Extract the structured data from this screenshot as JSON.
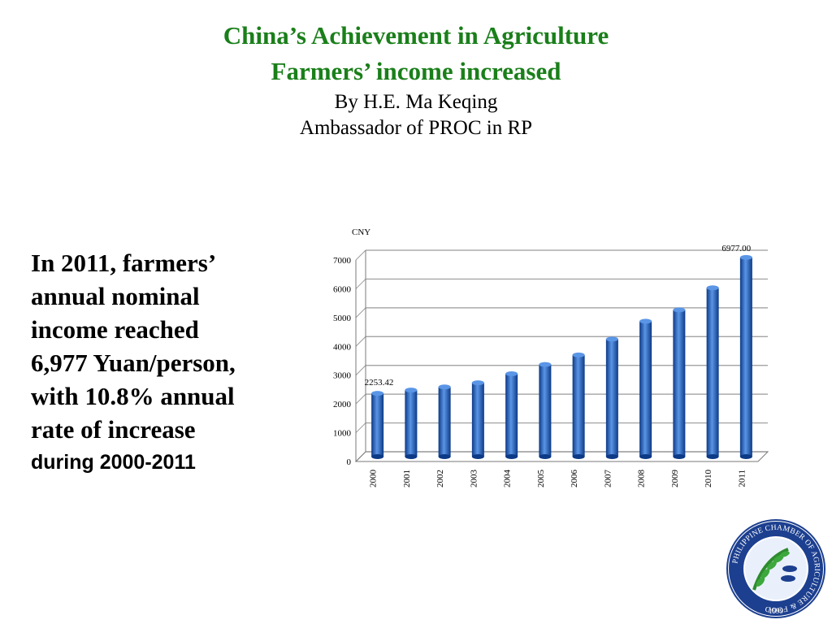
{
  "slide": {
    "title_line1": "China’s Achievement in Agriculture",
    "title_line2": "Farmers’ income increased",
    "author_line": "By H.E. Ma Keqing",
    "role_line": "Ambassador  of PROC in RP",
    "body_lines": [
      "In 2011, farmers’",
      "annual nominal",
      "income reached",
      "6,977 Yuan/person,",
      "with 10.8% annual",
      "rate of  increase"
    ],
    "body_last_line": "during 2000-2011"
  },
  "logo": {
    "ring_text": "PHILIPPINE CHAMBER OF AGRICULTURE & FOOD",
    "year": "1999"
  },
  "chart_data": {
    "type": "bar",
    "ylabel": "CNY",
    "categories": [
      "2000",
      "2001",
      "2002",
      "2003",
      "2004",
      "2005",
      "2006",
      "2007",
      "2008",
      "2009",
      "2010",
      "2011"
    ],
    "values": [
      2253.42,
      2366,
      2476,
      2622,
      2936,
      3255,
      3587,
      4140,
      4761,
      5153,
      5919,
      6977.0
    ],
    "data_labels": {
      "0": "2253.42",
      "11": "6977.00"
    },
    "yticks": [
      "0",
      "1000",
      "2000",
      "3000",
      "4000",
      "5000",
      "6000",
      "7000"
    ],
    "ylim": [
      0,
      7000
    ],
    "grid": true,
    "colors": {
      "bar": "#1f5fbf",
      "bar_dark": "#0d3a86",
      "bar_light": "#5a95e6",
      "grid": "#9a9a9a",
      "axis": "#7a7a7a"
    }
  }
}
